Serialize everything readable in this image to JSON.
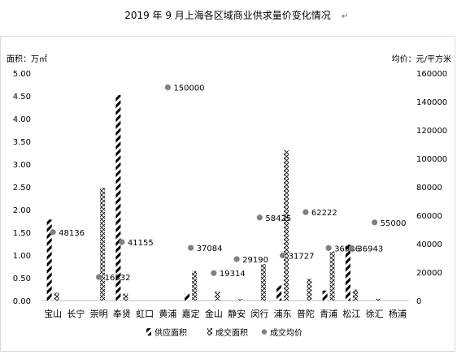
{
  "chart_data": {
    "type": "bar",
    "title": "2019 年 9 月上海各区域商业供求量价变化情况",
    "title_mark": "↵",
    "left_axis_label": "面积：万㎡",
    "right_axis_label": "均价：元/平方米",
    "categories": [
      "宝山",
      "长宁",
      "崇明",
      "奉贤",
      "虹口",
      "黄浦",
      "嘉定",
      "金山",
      "静安",
      "闵行",
      "浦东",
      "普陀",
      "青浦",
      "松江",
      "徐汇",
      "杨浦"
    ],
    "ylim_left": [
      0,
      5
    ],
    "yticks_left": [
      "0.00",
      "0.50",
      "1.00",
      "1.50",
      "2.00",
      "2.50",
      "3.00",
      "3.50",
      "4.00",
      "4.50",
      "5.00"
    ],
    "ylim_right": [
      0,
      160000
    ],
    "yticks_right": [
      "0",
      "20000",
      "40000",
      "60000",
      "80000",
      "100000",
      "120000",
      "140000",
      "160000"
    ],
    "series": [
      {
        "name": "供应面积",
        "kind": "bar",
        "axis": "left",
        "values": [
          1.78,
          0,
          0,
          4.52,
          0,
          0,
          0.15,
          0,
          0,
          0,
          0.33,
          0,
          0.22,
          1.23,
          0,
          0
        ]
      },
      {
        "name": "成交面积",
        "kind": "bar",
        "axis": "left",
        "values": [
          0.17,
          0,
          2.48,
          0.15,
          0,
          0,
          0.65,
          0.2,
          0.03,
          0.8,
          3.3,
          0.48,
          1.08,
          0.24,
          0.04,
          0
        ]
      },
      {
        "name": "成交均价",
        "kind": "scatter",
        "axis": "right",
        "values": [
          48136,
          null,
          16532,
          41155,
          null,
          150000,
          37084,
          19314,
          29190,
          58425,
          31727,
          62222,
          36986,
          36943,
          55000,
          null
        ],
        "labels": [
          "48136",
          "",
          "16532",
          "41155",
          "",
          "150000",
          "37084",
          "19314",
          "29190",
          "58425",
          "31727",
          "62222",
          "36986",
          "36943",
          "55000",
          ""
        ]
      }
    ],
    "legend_position": "bottom",
    "grid": false,
    "colors": {
      "supply": "#000000",
      "deal": "#000000",
      "price": "#808080"
    }
  }
}
